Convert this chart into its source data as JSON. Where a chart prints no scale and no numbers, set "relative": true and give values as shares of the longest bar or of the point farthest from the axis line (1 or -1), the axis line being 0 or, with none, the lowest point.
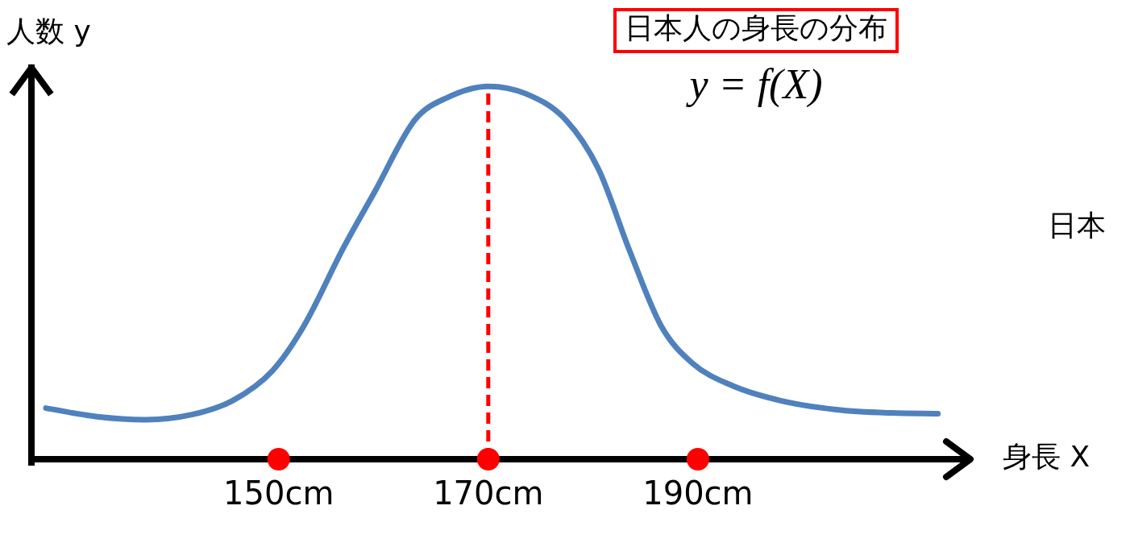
{
  "chart_data": {
    "type": "line",
    "title": "日本人の身長の分布",
    "xlabel": "身長 X",
    "ylabel": "人数 y",
    "relative": true,
    "x": [
      127.8,
      132.7,
      137.3,
      141.8,
      145.6,
      149.4,
      152.4,
      156.2,
      159.2,
      163.0,
      166.1,
      170,
      173.6,
      177.4,
      180.5,
      183.5,
      186.5,
      189.5,
      193.3,
      197.9,
      203.2,
      208.5,
      212.9
    ],
    "series": [
      {
        "color": "#4f81bd",
        "values": [
          0.137,
          0.114,
          0.106,
          0.12,
          0.157,
          0.237,
          0.357,
          0.568,
          0.719,
          0.91,
          0.97,
          1.0,
          0.98,
          0.91,
          0.779,
          0.558,
          0.357,
          0.257,
          0.197,
          0.157,
          0.133,
          0.124,
          0.122
        ]
      },
      {
        "type": "scatter",
        "color": "#ff0000",
        "x": [
          150,
          170,
          190
        ],
        "values": [
          0,
          0,
          0
        ],
        "marker": "circle"
      }
    ],
    "xlim": [
      126.8,
      216
    ],
    "xticks": [
      {
        "value": 150,
        "label": "150cm"
      },
      {
        "value": 170,
        "label": "170cm"
      },
      {
        "value": 190,
        "label": "190cm"
      }
    ],
    "ref_lines": [
      {
        "axis": "x",
        "value": 170,
        "color": "#ff0000",
        "line_style": "dashed"
      }
    ],
    "annotations": [
      "y = f(X)",
      "日本"
    ],
    "grid": false,
    "legend": false,
    "marker": "none",
    "line_style": "solid"
  }
}
